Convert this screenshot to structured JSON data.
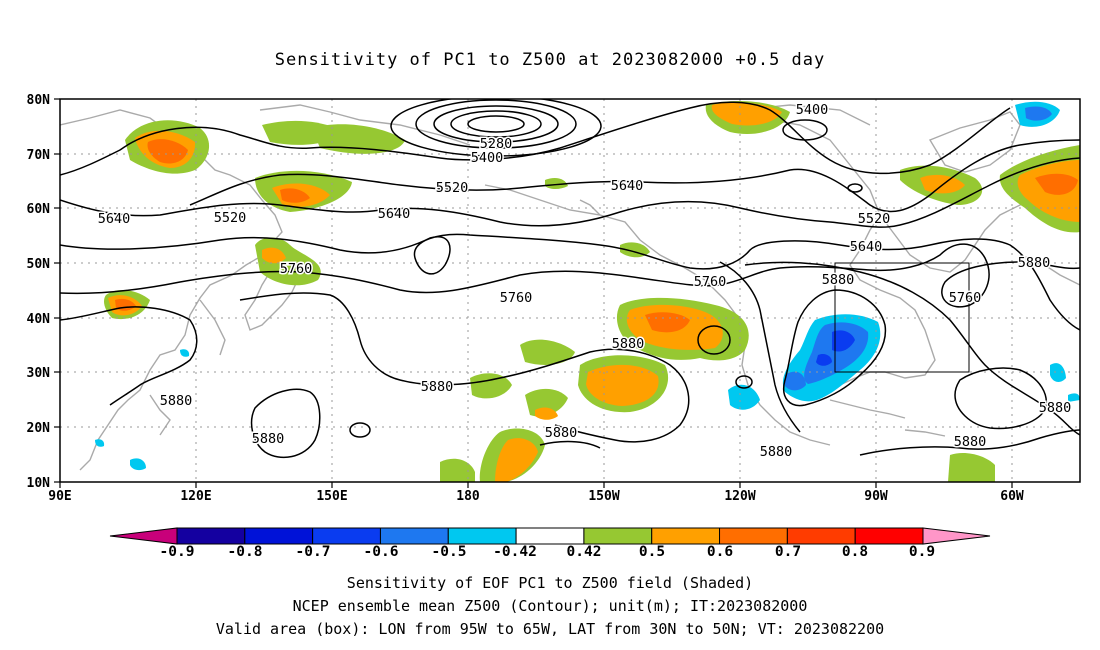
{
  "title": "Sensitivity of PC1 to Z500 at 2023082000 +0.5 day",
  "map": {
    "lon_labels": [
      "90E",
      "120E",
      "150E",
      "180",
      "150W",
      "120W",
      "90W",
      "60W"
    ],
    "lat_labels": [
      "10N",
      "20N",
      "30N",
      "40N",
      "50N",
      "60N",
      "70N",
      "80N"
    ],
    "contour_labels": [
      {
        "text": "5280"
      },
      {
        "text": "5400"
      },
      {
        "text": "5400"
      },
      {
        "text": "5520"
      },
      {
        "text": "5520"
      },
      {
        "text": "5520"
      },
      {
        "text": "5640"
      },
      {
        "text": "5640"
      },
      {
        "text": "5640"
      },
      {
        "text": "5640"
      },
      {
        "text": "5760"
      },
      {
        "text": "5760"
      },
      {
        "text": "5760"
      },
      {
        "text": "5760"
      },
      {
        "text": "5880"
      },
      {
        "text": "5880"
      },
      {
        "text": "5880"
      },
      {
        "text": "5880"
      },
      {
        "text": "5880"
      },
      {
        "text": "5880"
      },
      {
        "text": "5880"
      },
      {
        "text": "5880"
      },
      {
        "text": "5880"
      },
      {
        "text": "5880"
      }
    ],
    "valid_box": {
      "lon_from": "95W",
      "lon_to": "65W",
      "lat_from": "30N",
      "lat_to": "50N"
    },
    "colors": {
      "land": "#aaaaaa",
      "grid": "#999999",
      "contour": "#000000"
    }
  },
  "colorbar": {
    "labels": [
      "-0.9",
      "-0.8",
      "-0.7",
      "-0.6",
      "-0.5",
      "-0.42",
      "0.42",
      "0.5",
      "0.6",
      "0.7",
      "0.8",
      "0.9"
    ],
    "colors": [
      "#c8007a",
      "#1400a0",
      "#0012d8",
      "#0a3cf0",
      "#1e78f0",
      "#00c8f0",
      "#ffffff",
      "#96c832",
      "#ffa000",
      "#ff6e00",
      "#ff3c00",
      "#ff0000",
      "#ff96c8"
    ]
  },
  "captions": {
    "line1": "Sensitivity of EOF PC1 to Z500 field (Shaded)",
    "line2": "NCEP ensemble mean Z500 (Contour); unit(m); IT:2023082000",
    "line3": "Valid area (box): LON from 95W to 65W, LAT from 30N to 50N; VT: 2023082200"
  }
}
